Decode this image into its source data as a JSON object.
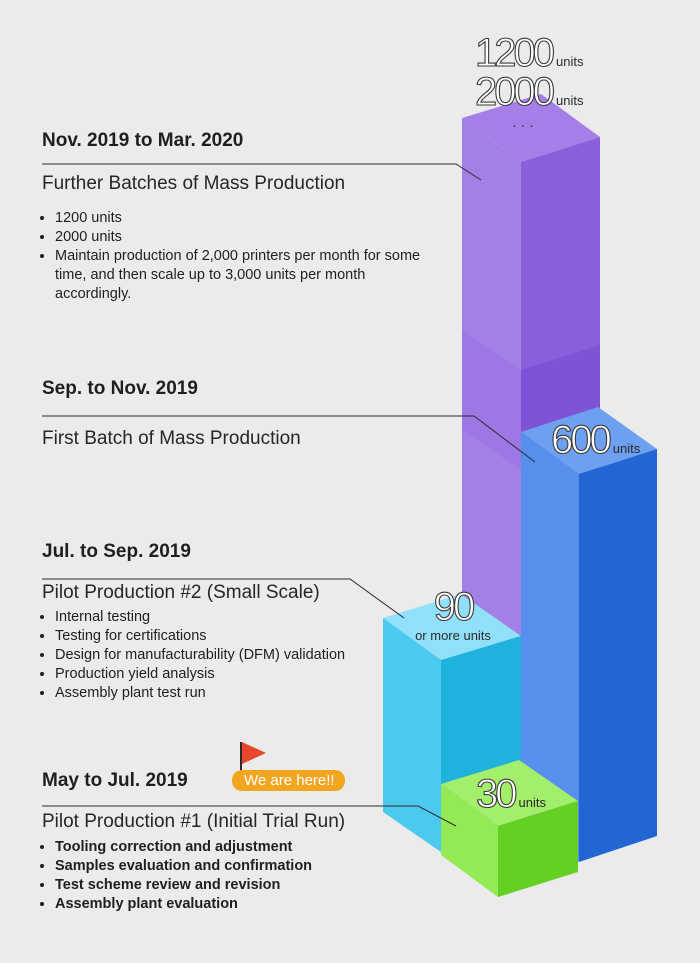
{
  "stages": [
    {
      "date": "Nov. 2019 to Mar. 2020",
      "title": "Further Batches of Mass Production",
      "bullets": [
        "1200 units",
        "2000 units",
        "Maintain production of 2,000 printers per month for some time, and then scale up to 3,000 units per month accordingly."
      ]
    },
    {
      "date": "Sep. to Nov. 2019",
      "title": "First Batch of Mass Production",
      "bullets": []
    },
    {
      "date": "Jul. to Sep. 2019",
      "title": "Pilot Production #2 (Small Scale)",
      "bullets": [
        "Internal testing",
        "Testing for certifications",
        "Design for manufacturability (DFM) validation",
        "Production yield analysis",
        "Assembly plant test run"
      ]
    },
    {
      "date": "May to Jul. 2019",
      "title": "Pilot Production #1 (Initial Trial Run)",
      "bullets": [
        "Tooling correction and adjustment",
        "Samples evaluation and confirmation",
        "Test scheme review and revision",
        "Assembly plant evaluation"
      ]
    }
  ],
  "current_marker": "We are here!!",
  "bars": [
    {
      "name": "purple-bar",
      "labels": [
        {
          "value": "1200",
          "unit": "units"
        },
        {
          "value": "2000",
          "unit": "units"
        }
      ],
      "ellipsis": "· · ·",
      "colors": {
        "top": "#a67ee8",
        "front": "#a280e6",
        "side": "#8a5fdb"
      }
    },
    {
      "name": "blue-bar",
      "labels": [
        {
          "value": "600",
          "unit": "units"
        }
      ],
      "colors": {
        "top": "#6ea0f0",
        "front": "#5690ec",
        "side": "#2166d3"
      }
    },
    {
      "name": "cyan-bar",
      "labels": [
        {
          "value": "90",
          "unit": "or more units"
        }
      ],
      "colors": {
        "top": "#8fe0f8",
        "front": "#4cc9ee",
        "side": "#1fb2dc"
      }
    },
    {
      "name": "green-bar",
      "labels": [
        {
          "value": "30",
          "unit": "units"
        }
      ],
      "colors": {
        "top": "#a3ee6a",
        "front": "#93ea55",
        "side": "#65d024"
      }
    }
  ],
  "colors": {
    "background": "#ebebeb",
    "connector": "#2b2b2b",
    "flag": "#e8472b",
    "badge": "#f2a51e"
  }
}
